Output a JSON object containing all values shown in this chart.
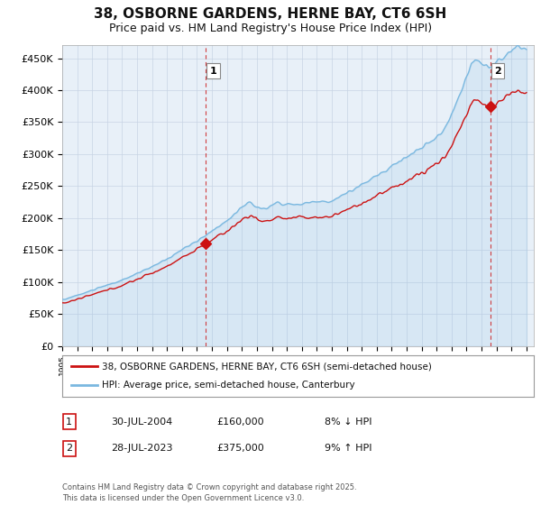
{
  "title": "38, OSBORNE GARDENS, HERNE BAY, CT6 6SH",
  "subtitle": "Price paid vs. HM Land Registry's House Price Index (HPI)",
  "ylabel_ticks": [
    "£0",
    "£50K",
    "£100K",
    "£150K",
    "£200K",
    "£250K",
    "£300K",
    "£350K",
    "£400K",
    "£450K"
  ],
  "ytick_values": [
    0,
    50000,
    100000,
    150000,
    200000,
    250000,
    300000,
    350000,
    400000,
    450000
  ],
  "ylim": [
    0,
    470000
  ],
  "xlim_start": 1995.0,
  "xlim_end": 2026.5,
  "xtick_years": [
    1995,
    1996,
    1997,
    1998,
    1999,
    2000,
    2001,
    2002,
    2003,
    2004,
    2005,
    2006,
    2007,
    2008,
    2009,
    2010,
    2011,
    2012,
    2013,
    2014,
    2015,
    2016,
    2017,
    2018,
    2019,
    2020,
    2021,
    2022,
    2023,
    2024,
    2025,
    2026
  ],
  "hpi_color": "#7ab8e0",
  "price_color": "#cc1111",
  "sale1_year": 2004.58,
  "sale1_price": 160000,
  "sale2_year": 2023.58,
  "sale2_price": 375000,
  "label1": "1",
  "label2": "2",
  "legend_line1": "38, OSBORNE GARDENS, HERNE BAY, CT6 6SH (semi-detached house)",
  "legend_line2": "HPI: Average price, semi-detached house, Canterbury",
  "table_row1_num": "1",
  "table_row1_date": "30-JUL-2004",
  "table_row1_price": "£160,000",
  "table_row1_hpi": "8% ↓ HPI",
  "table_row2_num": "2",
  "table_row2_date": "28-JUL-2023",
  "table_row2_price": "£375,000",
  "table_row2_hpi": "9% ↑ HPI",
  "footer": "Contains HM Land Registry data © Crown copyright and database right 2025.\nThis data is licensed under the Open Government Licence v3.0.",
  "bg_color": "#ffffff",
  "plot_bg_color": "#e8f0f8",
  "grid_color": "#c8d4e4",
  "title_fontsize": 11,
  "subtitle_fontsize": 9,
  "axis_fontsize": 8
}
